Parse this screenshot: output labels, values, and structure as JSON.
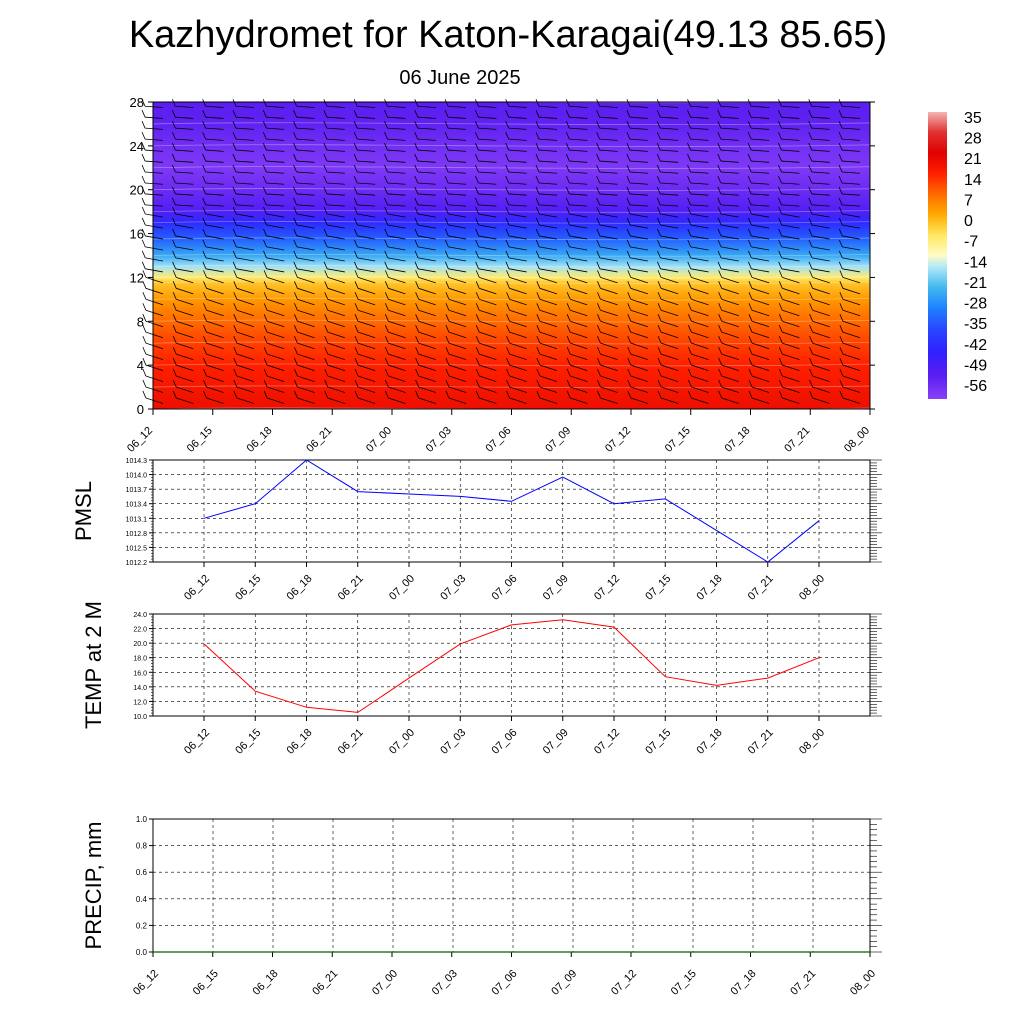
{
  "title": "Kazhydromet for Katon-Karagai(49.13 85.65)",
  "subtitle": "06 June 2025",
  "colors": {
    "pmsl_line": "#0000ff",
    "temp_line": "#ff0000",
    "precip_line": "#006400",
    "grid": "#000000"
  },
  "chart_data": [
    {
      "type": "heatmap",
      "name": "temperature-profile",
      "title": "",
      "x_tick_labels": [
        "06_12",
        "06_15",
        "06_18",
        "06_21",
        "07_00",
        "07_03",
        "07_06",
        "07_09",
        "07_12",
        "07_15",
        "07_18",
        "07_21",
        "08_00"
      ],
      "y_ticks": [
        0,
        4,
        8,
        12,
        16,
        20,
        24,
        28
      ],
      "ylim": [
        0,
        28
      ],
      "levels_profile": [
        {
          "level": 0,
          "value": 21
        },
        {
          "level": 2,
          "value": 19
        },
        {
          "level": 4,
          "value": 17
        },
        {
          "level": 6,
          "value": 14
        },
        {
          "level": 8,
          "value": 10
        },
        {
          "level": 10,
          "value": 5
        },
        {
          "level": 11.5,
          "value": 0
        },
        {
          "level": 12,
          "value": -5
        },
        {
          "level": 13,
          "value": -16
        },
        {
          "level": 14,
          "value": -24
        },
        {
          "level": 15.5,
          "value": -33
        },
        {
          "level": 17,
          "value": -42
        },
        {
          "level": 18,
          "value": -50
        },
        {
          "level": 20,
          "value": -55
        },
        {
          "level": 22,
          "value": -58
        },
        {
          "level": 24,
          "value": -56
        },
        {
          "level": 26,
          "value": -53
        },
        {
          "level": 28,
          "value": -52
        }
      ],
      "wind_barbs": true,
      "colorbar": {
        "labels": [
          "35",
          "28",
          "21",
          "14",
          "7",
          "0",
          "-7",
          "-14",
          "-21",
          "-28",
          "-35",
          "-42",
          "-49",
          "-56"
        ],
        "stops": [
          {
            "value": 38,
            "color": "#f4b4b4"
          },
          {
            "value": 31,
            "color": "#e03030"
          },
          {
            "value": 24,
            "color": "#e00000"
          },
          {
            "value": 17,
            "color": "#ff2000"
          },
          {
            "value": 10,
            "color": "#ff6a00"
          },
          {
            "value": 3,
            "color": "#ffaa00"
          },
          {
            "value": -4,
            "color": "#ffe860"
          },
          {
            "value": -11,
            "color": "#fffcc8"
          },
          {
            "value": -15,
            "color": "#b0e8f8"
          },
          {
            "value": -22,
            "color": "#40b8f0"
          },
          {
            "value": -29,
            "color": "#1e80ff"
          },
          {
            "value": -36,
            "color": "#2848ff"
          },
          {
            "value": -44,
            "color": "#3020ff"
          },
          {
            "value": -52,
            "color": "#5a1ef0"
          },
          {
            "value": -60,
            "color": "#8a40f8"
          }
        ]
      }
    },
    {
      "type": "line",
      "name": "pmsl",
      "ylabel": "PMSL",
      "x_tick_labels": [
        "06_12",
        "06_15",
        "06_18",
        "06_21",
        "07_00",
        "07_03",
        "07_06",
        "07_09",
        "07_12",
        "07_15",
        "07_18",
        "07_21",
        "08_00"
      ],
      "y_tick_labels": [
        "1014.3",
        "1014.0",
        "1013.7",
        "1013.4",
        "1013.1",
        "1012.8",
        "1012.5",
        "1012.2"
      ],
      "ylim": [
        1012.2,
        1014.3
      ],
      "series": [
        {
          "values": [
            1013.1,
            1013.4,
            1014.3,
            1013.65,
            1013.6,
            1013.55,
            1013.45,
            1013.95,
            1013.4,
            1013.5,
            1012.85,
            1012.2,
            1013.05
          ]
        }
      ]
    },
    {
      "type": "line",
      "name": "temp-2m",
      "ylabel": "TEMP at 2 M",
      "x_tick_labels": [
        "06_12",
        "06_15",
        "06_18",
        "06_21",
        "07_00",
        "07_03",
        "07_06",
        "07_09",
        "07_12",
        "07_15",
        "07_18",
        "07_21",
        "08_00"
      ],
      "y_tick_labels": [
        "24.0",
        "22.0",
        "20.0",
        "18.0",
        "16.0",
        "14.0",
        "12.0",
        "10.0"
      ],
      "ylim": [
        10,
        24
      ],
      "series": [
        {
          "values": [
            19.9,
            13.4,
            11.2,
            10.5,
            15.2,
            19.9,
            22.5,
            23.2,
            22.2,
            15.4,
            14.2,
            15.2,
            18.0
          ]
        }
      ]
    },
    {
      "type": "line",
      "name": "precip",
      "ylabel": "PRECIP, mm",
      "x_tick_labels": [
        "06_12",
        "06_15",
        "06_18",
        "06_21",
        "07_00",
        "07_03",
        "07_06",
        "07_09",
        "07_12",
        "07_15",
        "07_18",
        "07_21",
        "08_00"
      ],
      "y_tick_labels": [
        "1.0",
        "0.8",
        "0.6",
        "0.4",
        "0.2",
        "0.0"
      ],
      "ylim": [
        0,
        1
      ],
      "series": [
        {
          "values": [
            0,
            0,
            0,
            0,
            0,
            0,
            0,
            0,
            0,
            0,
            0,
            0,
            0
          ]
        }
      ]
    }
  ]
}
